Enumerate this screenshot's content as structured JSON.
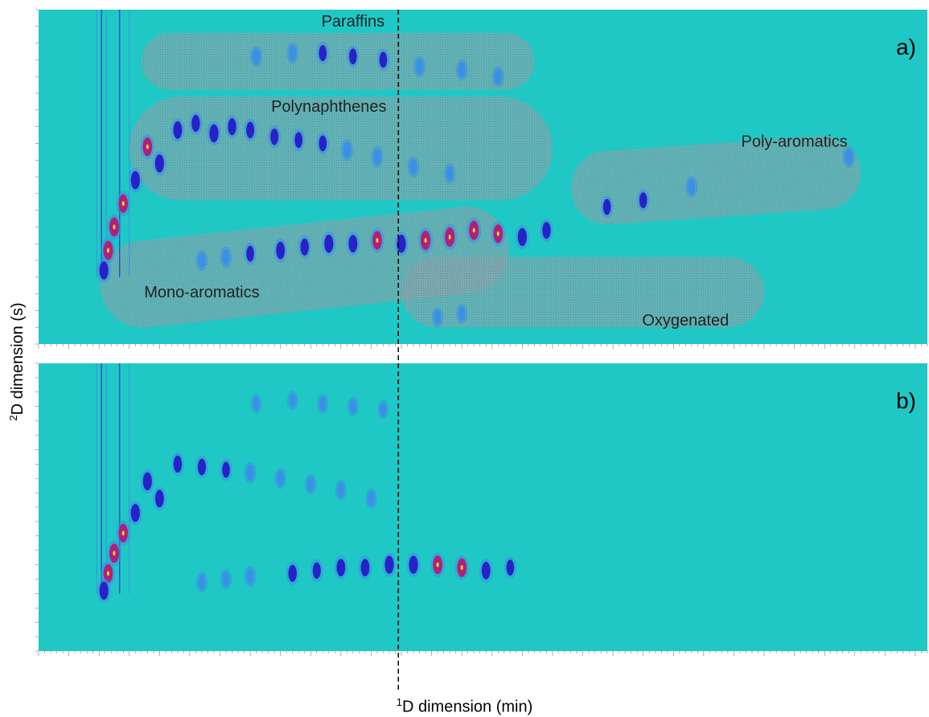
{
  "figure": {
    "xlabel_sup": "1",
    "xlabel_text": "D dimension (min)",
    "ylabel_sup": "2",
    "ylabel_text": "D dimension (s)",
    "colors": {
      "background": "#1fc8c4",
      "low": "#3a8fe6",
      "mid": "#2622c8",
      "high": "#b0207a",
      "peak": "#e8d020",
      "region_fill": "#8fa8b0",
      "tick_strip": "#ffffff"
    }
  },
  "chart_data": [
    {
      "type": "heatmap",
      "panel_label": "a)",
      "x_unit": "min",
      "y_unit": "s",
      "xlim": [
        0,
        147
      ],
      "ylim": [
        0,
        10
      ],
      "divider_x": 59.5,
      "divider_style": "dashed black vertical line",
      "regions": [
        {
          "name": "Paraffins",
          "x_range": [
            17,
            82
          ],
          "y_range": [
            7.6,
            9.3
          ]
        },
        {
          "name": "Polynaphthenes",
          "x_range": [
            15,
            85
          ],
          "y_range": [
            4.3,
            7.4
          ]
        },
        {
          "name": "Poly-aromatics",
          "x_range": [
            88,
            136
          ],
          "y_range": [
            3.8,
            6.0
          ]
        },
        {
          "name": "Mono-aromatics",
          "x_range": [
            10,
            78
          ],
          "y_range": [
            1.0,
            3.6
          ]
        },
        {
          "name": "Oxygenated",
          "x_range": [
            60,
            120
          ],
          "y_range": [
            0.5,
            2.6
          ]
        }
      ],
      "peaks": [
        {
          "x": 36,
          "y": 8.6,
          "i": 0.6
        },
        {
          "x": 42,
          "y": 8.7,
          "i": 0.6
        },
        {
          "x": 47,
          "y": 8.7,
          "i": 0.7
        },
        {
          "x": 52,
          "y": 8.6,
          "i": 0.7
        },
        {
          "x": 57,
          "y": 8.5,
          "i": 0.7
        },
        {
          "x": 63,
          "y": 8.3,
          "i": 0.6
        },
        {
          "x": 70,
          "y": 8.2,
          "i": 0.6
        },
        {
          "x": 76,
          "y": 8.0,
          "i": 0.6
        },
        {
          "x": 23,
          "y": 6.4,
          "i": 0.85
        },
        {
          "x": 26,
          "y": 6.6,
          "i": 0.8
        },
        {
          "x": 29,
          "y": 6.3,
          "i": 0.9
        },
        {
          "x": 32,
          "y": 6.5,
          "i": 0.8
        },
        {
          "x": 35,
          "y": 6.4,
          "i": 0.75
        },
        {
          "x": 39,
          "y": 6.2,
          "i": 0.75
        },
        {
          "x": 43,
          "y": 6.1,
          "i": 0.7
        },
        {
          "x": 47,
          "y": 6.0,
          "i": 0.7
        },
        {
          "x": 51,
          "y": 5.8,
          "i": 0.65
        },
        {
          "x": 56,
          "y": 5.6,
          "i": 0.6
        },
        {
          "x": 62,
          "y": 5.3,
          "i": 0.6
        },
        {
          "x": 68,
          "y": 5.1,
          "i": 0.55
        },
        {
          "x": 18,
          "y": 5.9,
          "i": 0.95
        },
        {
          "x": 20,
          "y": 5.4,
          "i": 0.9
        },
        {
          "x": 16,
          "y": 4.9,
          "i": 0.9
        },
        {
          "x": 14,
          "y": 4.2,
          "i": 0.95
        },
        {
          "x": 12.5,
          "y": 3.5,
          "i": 1.0
        },
        {
          "x": 11.5,
          "y": 2.8,
          "i": 1.0
        },
        {
          "x": 10.8,
          "y": 2.2,
          "i": 0.9
        },
        {
          "x": 40,
          "y": 2.8,
          "i": 0.85
        },
        {
          "x": 44,
          "y": 2.9,
          "i": 0.8
        },
        {
          "x": 48,
          "y": 3.0,
          "i": 0.9
        },
        {
          "x": 52,
          "y": 3.0,
          "i": 0.85
        },
        {
          "x": 56,
          "y": 3.1,
          "i": 0.95
        },
        {
          "x": 60,
          "y": 3.0,
          "i": 0.9
        },
        {
          "x": 64,
          "y": 3.1,
          "i": 1.0
        },
        {
          "x": 68,
          "y": 3.2,
          "i": 1.0
        },
        {
          "x": 72,
          "y": 3.4,
          "i": 1.0
        },
        {
          "x": 76,
          "y": 3.3,
          "i": 0.95
        },
        {
          "x": 80,
          "y": 3.2,
          "i": 0.9
        },
        {
          "x": 84,
          "y": 3.4,
          "i": 0.8
        },
        {
          "x": 27,
          "y": 2.5,
          "i": 0.6
        },
        {
          "x": 31,
          "y": 2.6,
          "i": 0.6
        },
        {
          "x": 35,
          "y": 2.7,
          "i": 0.7
        },
        {
          "x": 94,
          "y": 4.1,
          "i": 0.7
        },
        {
          "x": 100,
          "y": 4.3,
          "i": 0.7
        },
        {
          "x": 108,
          "y": 4.7,
          "i": 0.6
        },
        {
          "x": 134,
          "y": 5.6,
          "i": 0.65
        },
        {
          "x": 66,
          "y": 0.8,
          "i": 0.5
        },
        {
          "x": 70,
          "y": 0.9,
          "i": 0.5
        }
      ]
    },
    {
      "type": "heatmap",
      "panel_label": "b)",
      "x_unit": "min",
      "y_unit": "s",
      "xlim": [
        0,
        147
      ],
      "ylim": [
        0,
        10
      ],
      "divider_x": 59.5,
      "peaks": [
        {
          "x": 36,
          "y": 8.6,
          "i": 0.45
        },
        {
          "x": 42,
          "y": 8.7,
          "i": 0.45
        },
        {
          "x": 47,
          "y": 8.6,
          "i": 0.5
        },
        {
          "x": 52,
          "y": 8.5,
          "i": 0.5
        },
        {
          "x": 57,
          "y": 8.4,
          "i": 0.45
        },
        {
          "x": 23,
          "y": 6.5,
          "i": 0.8
        },
        {
          "x": 27,
          "y": 6.4,
          "i": 0.75
        },
        {
          "x": 31,
          "y": 6.3,
          "i": 0.7
        },
        {
          "x": 35,
          "y": 6.2,
          "i": 0.65
        },
        {
          "x": 40,
          "y": 6.0,
          "i": 0.6
        },
        {
          "x": 45,
          "y": 5.8,
          "i": 0.55
        },
        {
          "x": 50,
          "y": 5.6,
          "i": 0.55
        },
        {
          "x": 55,
          "y": 5.3,
          "i": 0.5
        },
        {
          "x": 18,
          "y": 5.9,
          "i": 0.9
        },
        {
          "x": 20,
          "y": 5.3,
          "i": 0.85
        },
        {
          "x": 16,
          "y": 4.8,
          "i": 0.9
        },
        {
          "x": 14,
          "y": 4.1,
          "i": 0.95
        },
        {
          "x": 12.5,
          "y": 3.4,
          "i": 1.0
        },
        {
          "x": 11.5,
          "y": 2.7,
          "i": 0.95
        },
        {
          "x": 10.8,
          "y": 2.1,
          "i": 0.9
        },
        {
          "x": 42,
          "y": 2.7,
          "i": 0.8
        },
        {
          "x": 46,
          "y": 2.8,
          "i": 0.75
        },
        {
          "x": 50,
          "y": 2.9,
          "i": 0.85
        },
        {
          "x": 54,
          "y": 2.9,
          "i": 0.85
        },
        {
          "x": 58,
          "y": 3.0,
          "i": 0.9
        },
        {
          "x": 62,
          "y": 3.0,
          "i": 0.9
        },
        {
          "x": 66,
          "y": 3.0,
          "i": 0.95
        },
        {
          "x": 70,
          "y": 2.9,
          "i": 0.95
        },
        {
          "x": 74,
          "y": 2.8,
          "i": 0.85
        },
        {
          "x": 78,
          "y": 2.9,
          "i": 0.7
        },
        {
          "x": 27,
          "y": 2.4,
          "i": 0.55
        },
        {
          "x": 31,
          "y": 2.5,
          "i": 0.55
        },
        {
          "x": 35,
          "y": 2.6,
          "i": 0.6
        }
      ]
    }
  ]
}
